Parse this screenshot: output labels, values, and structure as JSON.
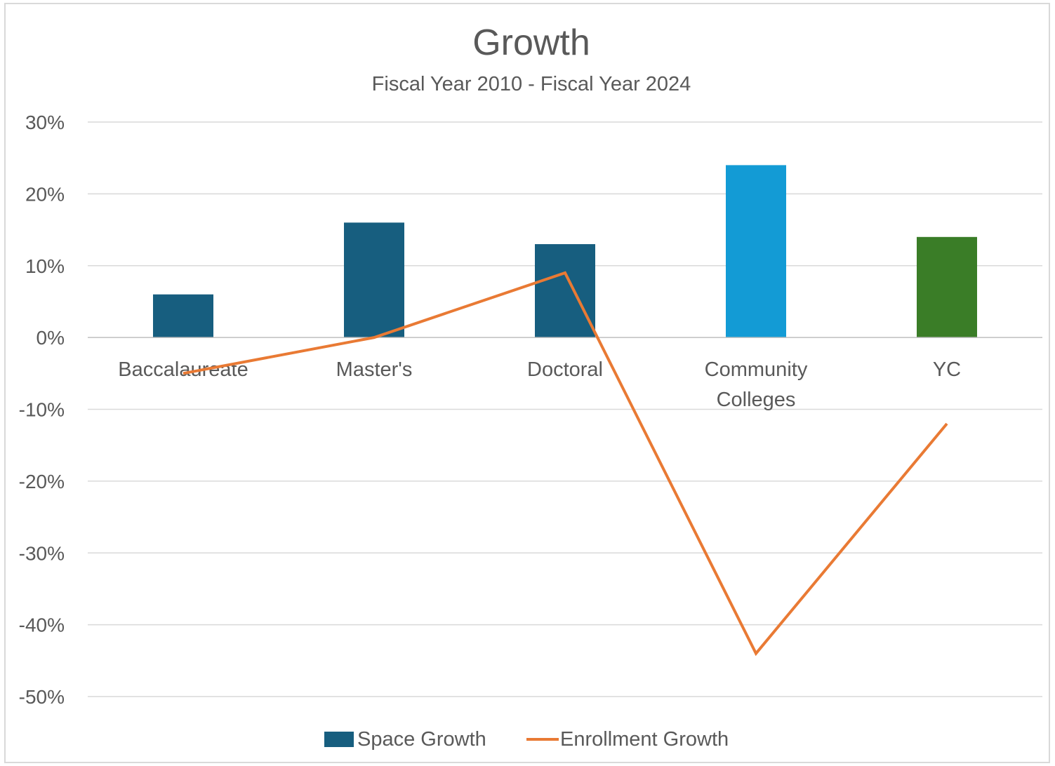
{
  "chart_data": {
    "type": "bar",
    "title": "Growth",
    "subtitle": "Fiscal Year 2010 - Fiscal Year 2024",
    "categories": [
      "Baccalaureate",
      "Master's",
      "Doctoral",
      "Community Colleges",
      "YC"
    ],
    "category_lines": [
      [
        "Baccalaureate"
      ],
      [
        "Master's"
      ],
      [
        "Doctoral"
      ],
      [
        "Community",
        "Colleges"
      ],
      [
        "YC"
      ]
    ],
    "ylim": [
      -0.5,
      0.3
    ],
    "yticks": [
      0.3,
      0.2,
      0.1,
      0,
      -0.1,
      -0.2,
      -0.3,
      -0.4,
      -0.5
    ],
    "ytick_labels": [
      "30%",
      "20%",
      "10%",
      "0%",
      "-10%",
      "-20%",
      "-30%",
      "-40%",
      "-50%"
    ],
    "grid": true,
    "legend_position": "bottom",
    "series": [
      {
        "name": "Space Growth",
        "kind": "bar",
        "values": [
          0.06,
          0.16,
          0.13,
          0.24,
          0.14
        ],
        "colors": [
          "#175e7f",
          "#175e7f",
          "#175e7f",
          "#139bd5",
          "#3a7d27"
        ],
        "legend_color": "#175e7f"
      },
      {
        "name": "Enrollment Growth",
        "kind": "line",
        "values": [
          -0.05,
          0.0,
          0.09,
          -0.44,
          -0.12
        ],
        "color": "#e97a34"
      }
    ]
  }
}
